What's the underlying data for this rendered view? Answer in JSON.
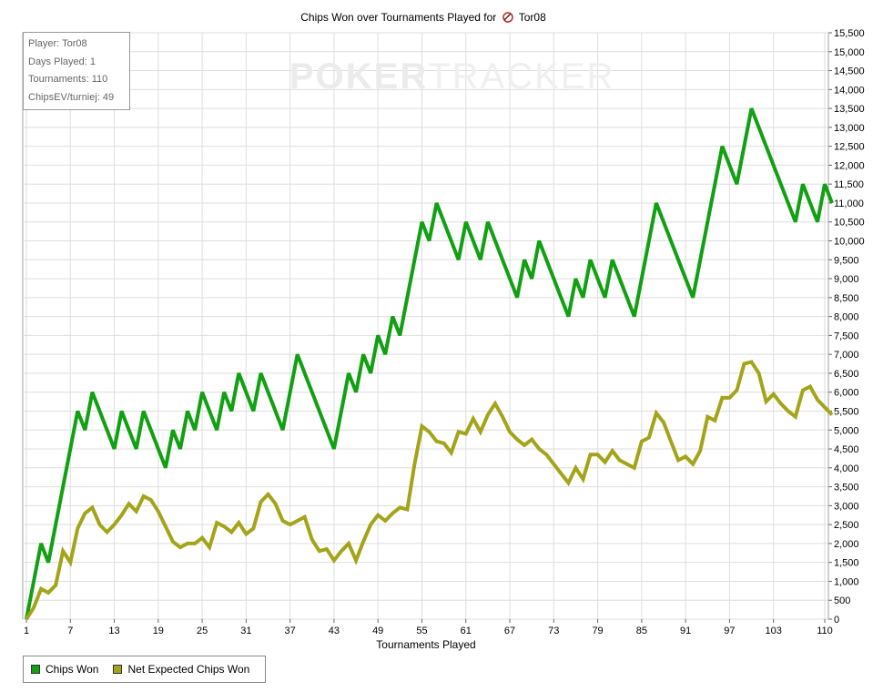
{
  "title": {
    "text": "Chips Won over Tournaments Played for",
    "player": "Tor08"
  },
  "watermark": {
    "part1": "POKER",
    "part2": "TRACKER"
  },
  "infobox": {
    "player": "Player: Tor08",
    "days": "Days Played: 1",
    "tournaments": "Tournaments: 110",
    "chipsev": "ChipsEV/turniej: 49"
  },
  "legend": {
    "chips_won": "Chips Won",
    "net_expected": "Net Expected Chips Won"
  },
  "colors": {
    "chips_won": "#11a011",
    "net_expected": "#a4a41a",
    "grid": "#dedede"
  },
  "chart_data": {
    "type": "line",
    "xlabel": "Tournaments Played",
    "ylabel": "",
    "xlim": [
      1,
      110
    ],
    "ylim": [
      0,
      15500
    ],
    "x_ticks": [
      1,
      7,
      13,
      19,
      25,
      31,
      37,
      43,
      49,
      55,
      61,
      67,
      73,
      79,
      85,
      91,
      97,
      103,
      110
    ],
    "y_ticks": [
      0,
      500,
      1000,
      1500,
      2000,
      2500,
      3000,
      3500,
      4000,
      4500,
      5000,
      5500,
      6000,
      6500,
      7000,
      7500,
      8000,
      8500,
      9000,
      9500,
      10000,
      10500,
      11000,
      11500,
      12000,
      12500,
      13000,
      13500,
      14000,
      14500,
      15000,
      15500
    ],
    "y_axis_side": "right",
    "grid": true,
    "legend_position": "bottom-left",
    "series": [
      {
        "name": "Chips Won",
        "color_key": "chips_won",
        "points": [
          [
            1,
            0
          ],
          [
            3,
            2000
          ],
          [
            4,
            1500
          ],
          [
            8,
            5500
          ],
          [
            9,
            5000
          ],
          [
            10,
            6000
          ],
          [
            11,
            5500
          ],
          [
            13,
            4500
          ],
          [
            14,
            5500
          ],
          [
            16,
            4500
          ],
          [
            17,
            5500
          ],
          [
            20,
            4000
          ],
          [
            21,
            5000
          ],
          [
            22,
            4500
          ],
          [
            23,
            5500
          ],
          [
            24,
            5000
          ],
          [
            25,
            6000
          ],
          [
            27,
            5000
          ],
          [
            28,
            6000
          ],
          [
            29,
            5500
          ],
          [
            30,
            6500
          ],
          [
            32,
            5500
          ],
          [
            33,
            6500
          ],
          [
            36,
            5000
          ],
          [
            38,
            7000
          ],
          [
            43,
            4500
          ],
          [
            45,
            6500
          ],
          [
            46,
            6000
          ],
          [
            47,
            7000
          ],
          [
            48,
            6500
          ],
          [
            49,
            7500
          ],
          [
            50,
            7000
          ],
          [
            51,
            8000
          ],
          [
            52,
            7500
          ],
          [
            55,
            10500
          ],
          [
            56,
            10000
          ],
          [
            57,
            11000
          ],
          [
            60,
            9500
          ],
          [
            61,
            10500
          ],
          [
            63,
            9500
          ],
          [
            64,
            10500
          ],
          [
            68,
            8500
          ],
          [
            69,
            9500
          ],
          [
            70,
            9000
          ],
          [
            71,
            10000
          ],
          [
            75,
            8000
          ],
          [
            76,
            9000
          ],
          [
            77,
            8500
          ],
          [
            78,
            9500
          ],
          [
            80,
            8500
          ],
          [
            81,
            9500
          ],
          [
            84,
            8000
          ],
          [
            87,
            11000
          ],
          [
            92,
            8500
          ],
          [
            96,
            12500
          ],
          [
            98,
            11500
          ],
          [
            100,
            13500
          ],
          [
            106,
            10500
          ],
          [
            107,
            11500
          ],
          [
            109,
            10500
          ],
          [
            110,
            11500
          ],
          [
            111,
            11000
          ]
        ]
      },
      {
        "name": "Net Expected Chips Won",
        "color_key": "net_expected",
        "points": [
          [
            1,
            0
          ],
          [
            2,
            300
          ],
          [
            3,
            800
          ],
          [
            4,
            700
          ],
          [
            5,
            900
          ],
          [
            6,
            1800
          ],
          [
            7,
            1500
          ],
          [
            8,
            2400
          ],
          [
            9,
            2800
          ],
          [
            10,
            2950
          ],
          [
            11,
            2500
          ],
          [
            12,
            2300
          ],
          [
            13,
            2500
          ],
          [
            14,
            2750
          ],
          [
            15,
            3050
          ],
          [
            16,
            2850
          ],
          [
            17,
            3250
          ],
          [
            18,
            3150
          ],
          [
            19,
            2850
          ],
          [
            20,
            2450
          ],
          [
            21,
            2050
          ],
          [
            22,
            1900
          ],
          [
            23,
            2000
          ],
          [
            24,
            2000
          ],
          [
            25,
            2150
          ],
          [
            26,
            1900
          ],
          [
            27,
            2550
          ],
          [
            28,
            2450
          ],
          [
            29,
            2300
          ],
          [
            30,
            2550
          ],
          [
            31,
            2250
          ],
          [
            32,
            2400
          ],
          [
            33,
            3100
          ],
          [
            34,
            3300
          ],
          [
            35,
            3050
          ],
          [
            36,
            2600
          ],
          [
            37,
            2500
          ],
          [
            38,
            2600
          ],
          [
            39,
            2700
          ],
          [
            40,
            2100
          ],
          [
            41,
            1800
          ],
          [
            42,
            1850
          ],
          [
            43,
            1550
          ],
          [
            44,
            1800
          ],
          [
            45,
            2000
          ],
          [
            46,
            1550
          ],
          [
            47,
            2050
          ],
          [
            48,
            2500
          ],
          [
            49,
            2750
          ],
          [
            50,
            2600
          ],
          [
            51,
            2800
          ],
          [
            52,
            2950
          ],
          [
            53,
            2900
          ],
          [
            54,
            4100
          ],
          [
            55,
            5100
          ],
          [
            56,
            4950
          ],
          [
            57,
            4700
          ],
          [
            58,
            4650
          ],
          [
            59,
            4400
          ],
          [
            60,
            4950
          ],
          [
            61,
            4900
          ],
          [
            62,
            5300
          ],
          [
            63,
            4950
          ],
          [
            64,
            5400
          ],
          [
            65,
            5700
          ],
          [
            66,
            5350
          ],
          [
            67,
            4950
          ],
          [
            68,
            4750
          ],
          [
            69,
            4600
          ],
          [
            70,
            4750
          ],
          [
            71,
            4500
          ],
          [
            72,
            4350
          ],
          [
            73,
            4100
          ],
          [
            74,
            3850
          ],
          [
            75,
            3600
          ],
          [
            76,
            4000
          ],
          [
            77,
            3700
          ],
          [
            78,
            4350
          ],
          [
            79,
            4350
          ],
          [
            80,
            4150
          ],
          [
            81,
            4450
          ],
          [
            82,
            4200
          ],
          [
            83,
            4100
          ],
          [
            84,
            4000
          ],
          [
            85,
            4700
          ],
          [
            86,
            4800
          ],
          [
            87,
            5450
          ],
          [
            88,
            5200
          ],
          [
            89,
            4700
          ],
          [
            90,
            4200
          ],
          [
            91,
            4300
          ],
          [
            92,
            4100
          ],
          [
            93,
            4450
          ],
          [
            94,
            5350
          ],
          [
            95,
            5250
          ],
          [
            96,
            5850
          ],
          [
            97,
            5850
          ],
          [
            98,
            6050
          ],
          [
            99,
            6750
          ],
          [
            100,
            6800
          ],
          [
            101,
            6500
          ],
          [
            102,
            5750
          ],
          [
            103,
            5950
          ],
          [
            104,
            5700
          ],
          [
            105,
            5500
          ],
          [
            106,
            5350
          ],
          [
            107,
            6050
          ],
          [
            108,
            6150
          ],
          [
            109,
            5800
          ],
          [
            110,
            5600
          ],
          [
            111,
            5400
          ]
        ]
      }
    ]
  }
}
